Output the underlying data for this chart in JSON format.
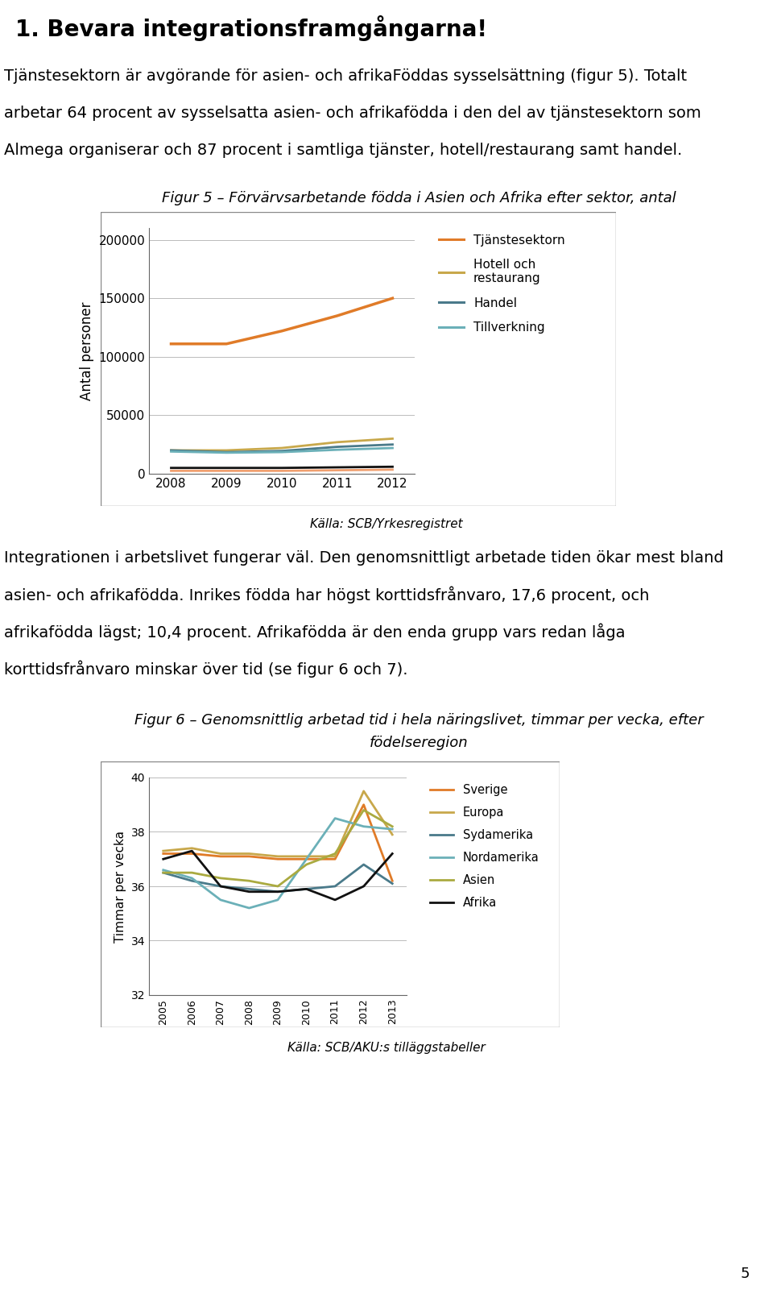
{
  "title": "Figur 5 – Förvärvsarbetande födda i Asien och Afrika efter sektor, antal",
  "heading1": "1. Bevara integrationsframgångarna!",
  "para1_line1": "Tjänstesektorn är avgörande för asien- och afrikaFöddas sysselsättning (figur 5). Totalt",
  "para1_line2": "arbetar 64 procent av sysselsatta asien- och afrikafödda i den del av tjänstesektorn som",
  "para1_line3": "Almega organiserar och 87 procent i samtliga tjänster, hotell/restaurang samt handel.",
  "years": [
    2008,
    2009,
    2010,
    2011,
    2012
  ],
  "series_tjänste": {
    "values": [
      111000,
      111000,
      122000,
      135000,
      150000
    ],
    "color": "#E07B28",
    "lw": 2.5
  },
  "series_hotell": {
    "values": [
      20000,
      20000,
      22000,
      27000,
      30000
    ],
    "color": "#C8A84B",
    "lw": 2.0
  },
  "series_handel": {
    "values": [
      20000,
      18500,
      19500,
      23000,
      25000
    ],
    "color": "#4A7A8A",
    "lw": 2.0
  },
  "series_tillverk": {
    "values": [
      19000,
      18000,
      18500,
      20500,
      22000
    ],
    "color": "#6BB0B8",
    "lw": 2.0
  },
  "series_black": {
    "values": [
      5000,
      5000,
      5000,
      5500,
      6000
    ],
    "color": "#111111",
    "lw": 2.0
  },
  "series_salmon": {
    "values": [
      2500,
      2500,
      2500,
      3000,
      3500
    ],
    "color": "#F0A070",
    "lw": 2.0
  },
  "ylabel5": "Antal personer",
  "ylim5": [
    0,
    210000
  ],
  "yticks5": [
    0,
    50000,
    100000,
    150000,
    200000
  ],
  "legend5": [
    "Tjänstesektorn",
    "Hotell och\nrestaurang",
    "Handel",
    "Tillverkning"
  ],
  "source_fig5": "Källa: SCB/Yrkesregistret",
  "para2_line1": "Integrationen i arbetslivet fungerar väl. Den genomsnittligt arbetade tiden ökar mest bland",
  "para2_line2": "asien- och afrikafödda. Inrikes födda har högst korttidsfrånvaro, 17,6 procent, och",
  "para2_line3": "afrikafödda lägst; 10,4 procent. Afrikafödda är den enda grupp vars redan låga",
  "para2_line4": "korttidsfrånvaro minskar över tid (se figur 6 och 7).",
  "fig6_title1": "Figur 6 – Genomsnittlig arbetad tid i hela näringslivet, timmar per vecka, efter",
  "fig6_title2": "födelseregion",
  "fig6_years": [
    2005,
    2006,
    2007,
    2008,
    2009,
    2010,
    2011,
    2012,
    2013
  ],
  "fig6_sverige": {
    "values": [
      37.2,
      37.2,
      37.1,
      37.1,
      37.0,
      37.0,
      37.0,
      39.0,
      36.2
    ],
    "color": "#E07B28"
  },
  "fig6_europa": {
    "values": [
      37.3,
      37.4,
      37.2,
      37.2,
      37.1,
      37.1,
      37.1,
      39.5,
      37.9
    ],
    "color": "#C8A84B"
  },
  "fig6_sydamerika": {
    "values": [
      36.5,
      36.2,
      36.0,
      35.9,
      35.8,
      35.9,
      36.0,
      36.8,
      36.1
    ],
    "color": "#4A7A8A"
  },
  "fig6_nordamerika": {
    "values": [
      36.6,
      36.3,
      35.5,
      35.2,
      35.5,
      37.0,
      38.5,
      38.2,
      38.1
    ],
    "color": "#6BB0B8"
  },
  "fig6_asien": {
    "values": [
      36.5,
      36.5,
      36.3,
      36.2,
      36.0,
      36.8,
      37.2,
      38.8,
      38.2
    ],
    "color": "#AAAA40"
  },
  "fig6_afrika": {
    "values": [
      37.0,
      37.3,
      36.0,
      35.8,
      35.8,
      35.9,
      35.5,
      36.0,
      37.2
    ],
    "color": "#111111"
  },
  "ylabel6": "Timmar per vecka",
  "ylim6": [
    32,
    40
  ],
  "yticks6": [
    32,
    34,
    36,
    38,
    40
  ],
  "legend6": [
    "Sverige",
    "Europa",
    "Sydamerika",
    "Nordamerika",
    "Asien",
    "Afrika"
  ],
  "source_fig6": "Källa: SCB/AKU:s tilläggstabeller",
  "page_number": "5",
  "bg": "#FFFFFF"
}
